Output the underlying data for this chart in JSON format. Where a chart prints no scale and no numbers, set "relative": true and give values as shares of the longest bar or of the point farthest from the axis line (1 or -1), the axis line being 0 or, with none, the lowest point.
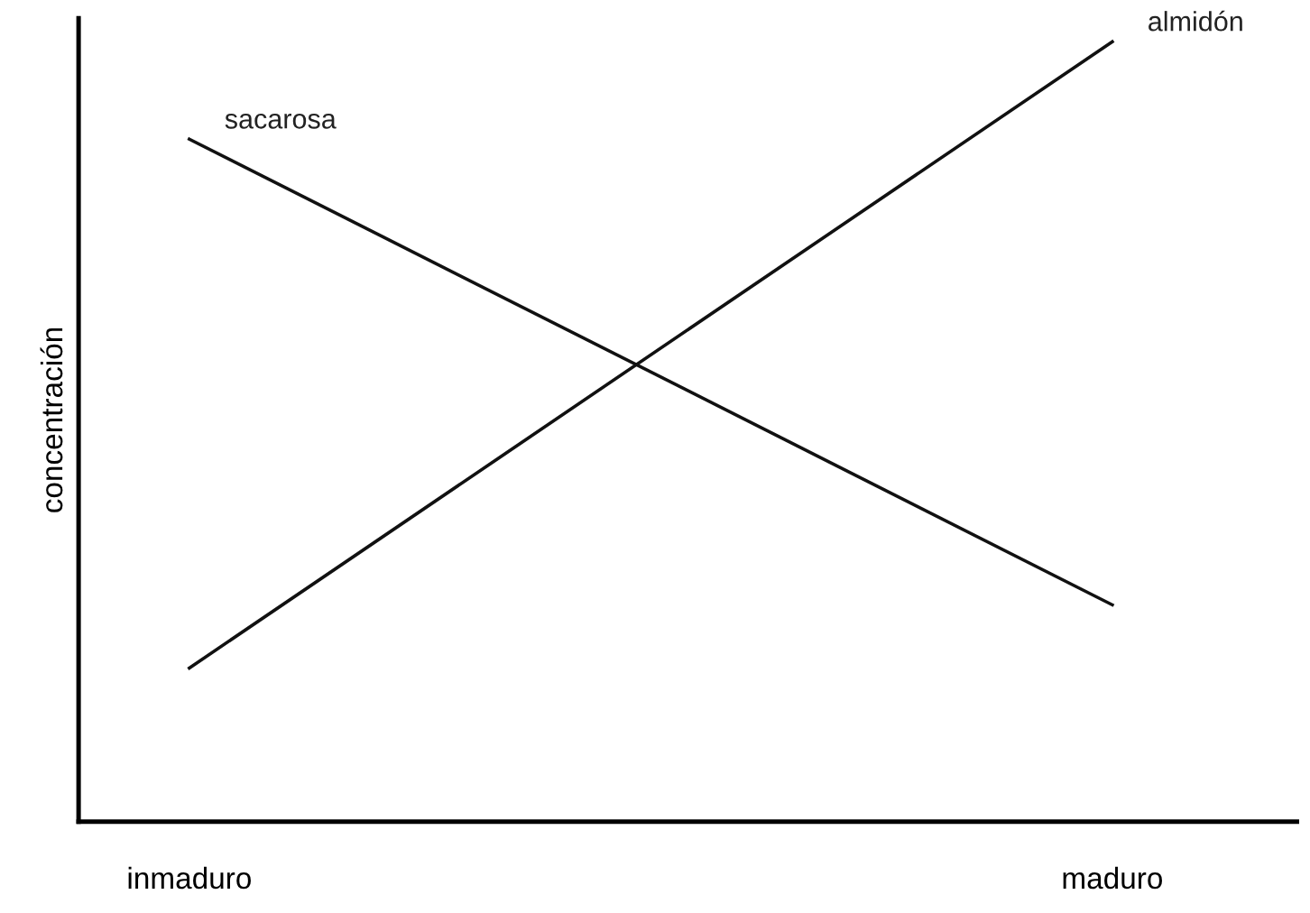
{
  "chart_data": {
    "type": "line",
    "ylabel": "concentración",
    "categories": [
      "inmaduro",
      "maduro"
    ],
    "relative": true,
    "legend": false,
    "grid": false,
    "marker": "none",
    "line_style": "solid",
    "series": [
      {
        "name": "sacarosa",
        "color": "#111111",
        "values": [
          0.875,
          0.278
        ]
      },
      {
        "name": "almidón",
        "color": "#111111",
        "values": [
          0.197,
          1.0
        ]
      }
    ]
  }
}
